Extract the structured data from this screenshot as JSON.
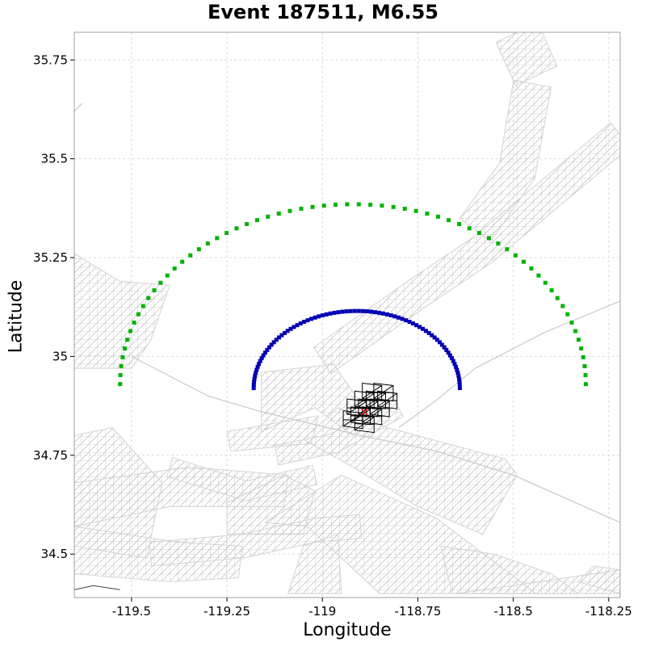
{
  "chart_data": {
    "type": "scatter",
    "title": "Event 187511, M6.55",
    "xlabel": "Longitude",
    "ylabel": "Latitude",
    "xlim": [
      -119.65,
      -118.22
    ],
    "ylim": [
      34.39,
      35.82
    ],
    "xticks": [
      -119.5,
      -119.25,
      -119,
      -118.75,
      -118.5,
      -118.25
    ],
    "xtick_labels": [
      "-119.5",
      "-119.25",
      "-119",
      "-118.75",
      "-118.5",
      "-118.25"
    ],
    "yticks": [
      34.5,
      34.75,
      35,
      35.25,
      35.5,
      35.75
    ],
    "ytick_labels": [
      "34.5",
      "34.75",
      "35",
      "35.25",
      "35.5",
      "35.75"
    ],
    "grid": true,
    "epicenter": {
      "lon": -118.89,
      "lat": 34.86,
      "color": "#e02020"
    },
    "semicircles": [
      {
        "name": "",
        "color": "#00b400",
        "center_lon": -118.92,
        "center_lat": 34.93,
        "radius_lon": 0.61,
        "radius_lat": 0.455,
        "points": 64
      },
      {
        "name": "",
        "color": "#0000b4",
        "center_lon": -118.91,
        "center_lat": 34.92,
        "radius_lon": 0.27,
        "radius_lat": 0.195,
        "points": 80
      }
    ],
    "fault_mesh_color": "#d4d4d4",
    "rupture_mesh_color": "#000000",
    "fault_meshes": [
      [
        [
          -118.96,
          34.87
        ],
        [
          -118.83,
          34.82
        ],
        [
          -118.52,
          34.74
        ],
        [
          -118.49,
          34.7
        ],
        [
          -118.58,
          34.55
        ],
        [
          -118.75,
          34.62
        ],
        [
          -118.92,
          34.72
        ],
        [
          -119.05,
          34.79
        ]
      ],
      [
        [
          -119.65,
          34.45
        ],
        [
          -119.4,
          34.43
        ],
        [
          -119.22,
          34.44
        ],
        [
          -119.21,
          34.52
        ],
        [
          -119.38,
          34.53
        ],
        [
          -119.65,
          34.57
        ]
      ],
      [
        [
          -119.65,
          34.8
        ],
        [
          -119.55,
          34.82
        ],
        [
          -119.42,
          34.68
        ],
        [
          -119.46,
          34.49
        ],
        [
          -119.65,
          34.52
        ]
      ],
      [
        [
          -119.65,
          35.26
        ],
        [
          -119.53,
          35.19
        ],
        [
          -119.4,
          35.18
        ],
        [
          -119.45,
          35.04
        ],
        [
          -119.5,
          34.97
        ],
        [
          -119.65,
          34.97
        ]
      ],
      [
        [
          -119.04,
          34.57
        ],
        [
          -119.15,
          34.58
        ],
        [
          -118.95,
          34.7
        ],
        [
          -118.7,
          34.59
        ],
        [
          -118.44,
          34.4
        ],
        [
          -118.85,
          34.4
        ]
      ],
      [
        [
          -119.16,
          34.96
        ],
        [
          -118.97,
          34.98
        ],
        [
          -118.87,
          34.84
        ],
        [
          -118.92,
          34.8
        ],
        [
          -119.02,
          34.87
        ],
        [
          -119.16,
          34.81
        ]
      ],
      [
        [
          -119.24,
          34.76
        ],
        [
          -119.03,
          34.78
        ],
        [
          -119.01,
          34.85
        ],
        [
          -119.25,
          34.81
        ]
      ],
      [
        [
          -119.25,
          34.63
        ],
        [
          -119.1,
          34.7
        ],
        [
          -119.02,
          34.66
        ],
        [
          -119.05,
          34.55
        ],
        [
          -119.25,
          34.55
        ]
      ],
      [
        [
          -119.65,
          34.68
        ],
        [
          -119.35,
          34.72
        ],
        [
          -119.09,
          34.7
        ],
        [
          -119.1,
          34.62
        ],
        [
          -119.4,
          34.62
        ],
        [
          -119.65,
          34.57
        ]
      ],
      [
        [
          -119.05,
          34.52
        ],
        [
          -118.96,
          34.55
        ],
        [
          -118.95,
          34.4
        ],
        [
          -119.09,
          34.4
        ]
      ],
      [
        [
          -118.65,
          34.4
        ],
        [
          -118.5,
          34.42
        ],
        [
          -118.22,
          34.46
        ],
        [
          -118.22,
          34.4
        ]
      ],
      [
        [
          -118.33,
          34.43
        ],
        [
          -118.29,
          34.47
        ],
        [
          -118.22,
          34.46
        ],
        [
          -118.22,
          34.4
        ]
      ],
      [
        [
          -118.66,
          34.4
        ],
        [
          -118.69,
          34.52
        ],
        [
          -118.55,
          34.5
        ],
        [
          -118.4,
          34.45
        ],
        [
          -118.33,
          34.4
        ]
      ]
    ],
    "fault_bands": [
      {
        "path": [
          [
            -119.0,
            34.99
          ],
          [
            -118.75,
            35.16
          ],
          [
            -118.58,
            35.27
          ],
          [
            -118.22,
            35.56
          ]
        ],
        "halfwidth": 0.04
      },
      {
        "path": [
          [
            -118.45,
            35.69
          ],
          [
            -118.49,
            35.47
          ],
          [
            -118.6,
            35.32
          ]
        ],
        "halfwidth": 0.05
      },
      {
        "path": [
          [
            -119.12,
            34.75
          ],
          [
            -118.97,
            34.78
          ],
          [
            -118.8,
            34.87
          ]
        ],
        "halfwidth": 0.025
      },
      {
        "path": [
          [
            -119.4,
            34.72
          ],
          [
            -119.2,
            34.66
          ],
          [
            -119.02,
            34.7
          ]
        ],
        "halfwidth": 0.025
      },
      {
        "path": [
          [
            -119.45,
            34.5
          ],
          [
            -119.21,
            34.52
          ],
          [
            -119.02,
            34.56
          ],
          [
            -118.9,
            34.57
          ]
        ],
        "halfwidth": 0.03
      },
      {
        "path": [
          [
            -118.49,
            35.82
          ],
          [
            -118.44,
            35.71
          ]
        ],
        "halfwidth": 0.06
      }
    ],
    "gray_lines": [
      [
        [
          -119.5,
          35.0
        ],
        [
          -119.3,
          34.9
        ],
        [
          -119.16,
          34.86
        ],
        [
          -118.9,
          34.8
        ],
        [
          -118.7,
          34.76
        ],
        [
          -118.5,
          34.7
        ],
        [
          -118.22,
          34.58
        ]
      ],
      [
        [
          -118.8,
          34.82
        ],
        [
          -118.7,
          34.89
        ],
        [
          -118.6,
          34.97
        ],
        [
          -118.42,
          35.06
        ],
        [
          -118.22,
          35.14
        ]
      ],
      [
        [
          -119.65,
          35.62
        ],
        [
          -119.63,
          35.64
        ]
      ]
    ],
    "rupture_cells": [
      {
        "lon": -118.87,
        "lat": 34.91
      },
      {
        "lon": -118.84,
        "lat": 34.91
      },
      {
        "lon": -118.89,
        "lat": 34.89
      },
      {
        "lon": -118.86,
        "lat": 34.89
      },
      {
        "lon": -118.83,
        "lat": 34.89
      },
      {
        "lon": -118.91,
        "lat": 34.87
      },
      {
        "lon": -118.88,
        "lat": 34.87
      },
      {
        "lon": -118.85,
        "lat": 34.87
      },
      {
        "lon": -118.9,
        "lat": 34.85
      },
      {
        "lon": -118.87,
        "lat": 34.85
      },
      {
        "lon": -118.92,
        "lat": 34.84
      },
      {
        "lon": -118.89,
        "lat": 34.83
      }
    ],
    "dark_line": [
      [
        -119.65,
        34.41
      ],
      [
        -119.6,
        34.42
      ],
      [
        -119.53,
        34.41
      ]
    ]
  }
}
